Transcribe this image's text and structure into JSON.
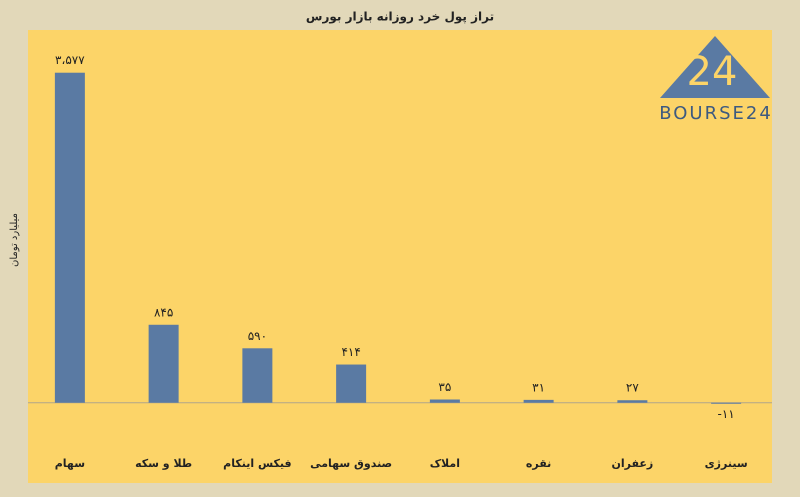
{
  "chart_data": {
    "type": "bar",
    "title": "تراز پول خرد روزانه بازار بورس",
    "y_label": "میلیارد تومان",
    "categories": [
      "سهام",
      "طلا و سکه",
      "فیکس اینکام",
      "صندوق سهامی",
      "املاک",
      "نقره",
      "زعفران",
      "سینرژی"
    ],
    "values": [
      3577,
      845,
      590,
      414,
      35,
      31,
      27,
      -11
    ],
    "value_labels": [
      "۳،۵۷۷",
      "۸۴۵",
      "۵۹۰",
      "۴۱۴",
      "۳۵",
      "۳۱",
      "۲۷",
      "-۱۱"
    ],
    "color": "#5a7aa3",
    "ylim": [
      -870,
      4040
    ]
  },
  "logo": {
    "mark": "24",
    "text": "BOURSE24"
  }
}
